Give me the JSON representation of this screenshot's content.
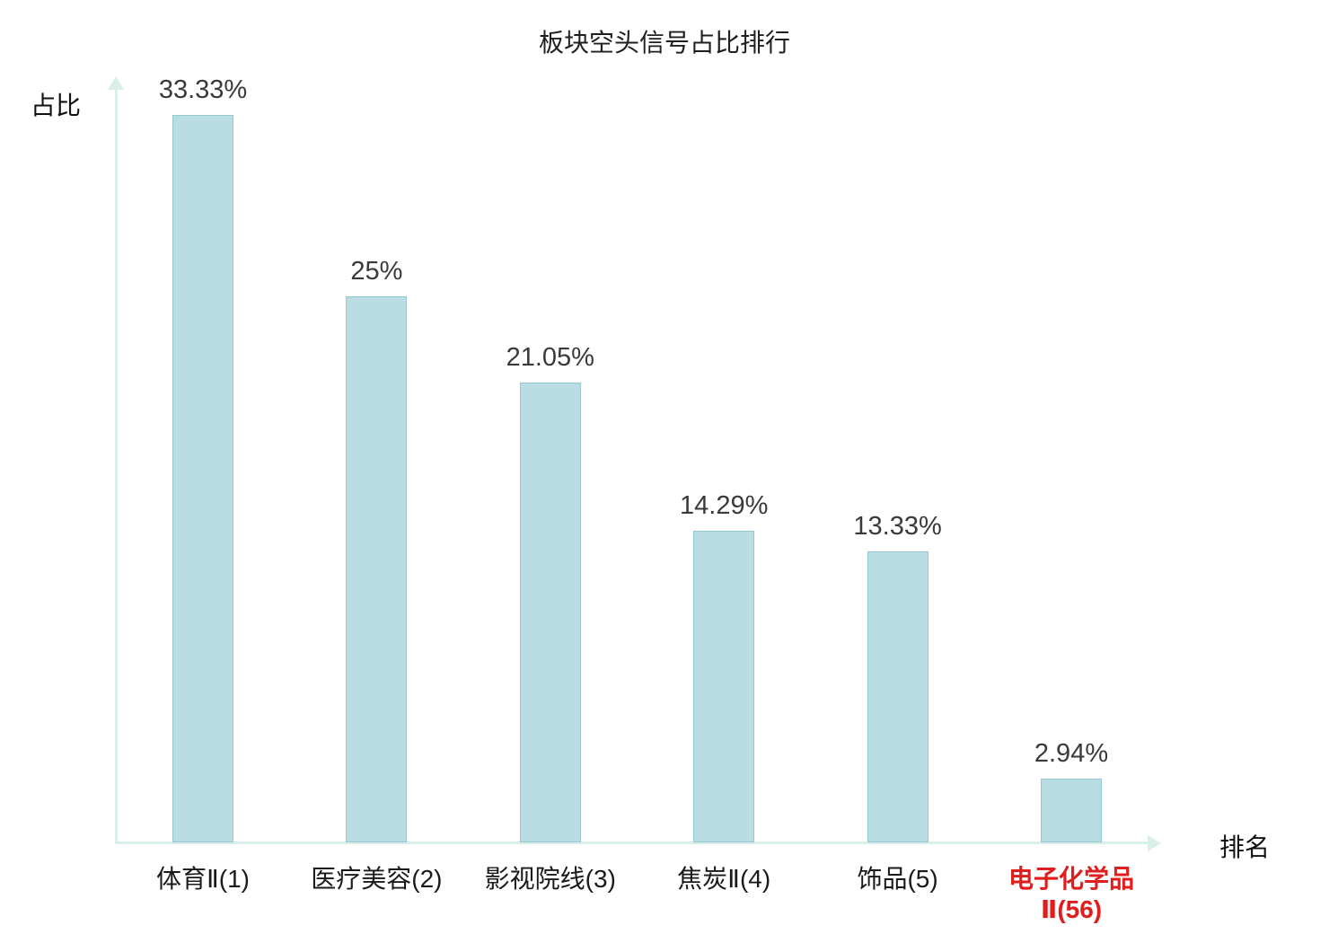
{
  "chart_data": {
    "type": "bar",
    "title": "板块空头信号占比排行",
    "xlabel": "排名",
    "ylabel": "占比",
    "categories": [
      "体育Ⅱ(1)",
      "医疗美容(2)",
      "影视院线(3)",
      "焦炭Ⅱ(4)",
      "饰品(5)",
      "电子化学品Ⅱ(56)"
    ],
    "values": [
      33.33,
      25,
      21.05,
      14.29,
      13.33,
      2.94
    ],
    "value_labels": [
      "33.33%",
      "25%",
      "21.05%",
      "14.29%",
      "13.33%",
      "2.94%"
    ],
    "highlight_index": 5,
    "highlight_color": "#e01e1e",
    "bar_color": "#b9dde2",
    "bar_border_color": "#94c7d0",
    "axis_color": "#d9efe9",
    "ylim": [
      0,
      38
    ],
    "grid": false,
    "legend": "none"
  }
}
